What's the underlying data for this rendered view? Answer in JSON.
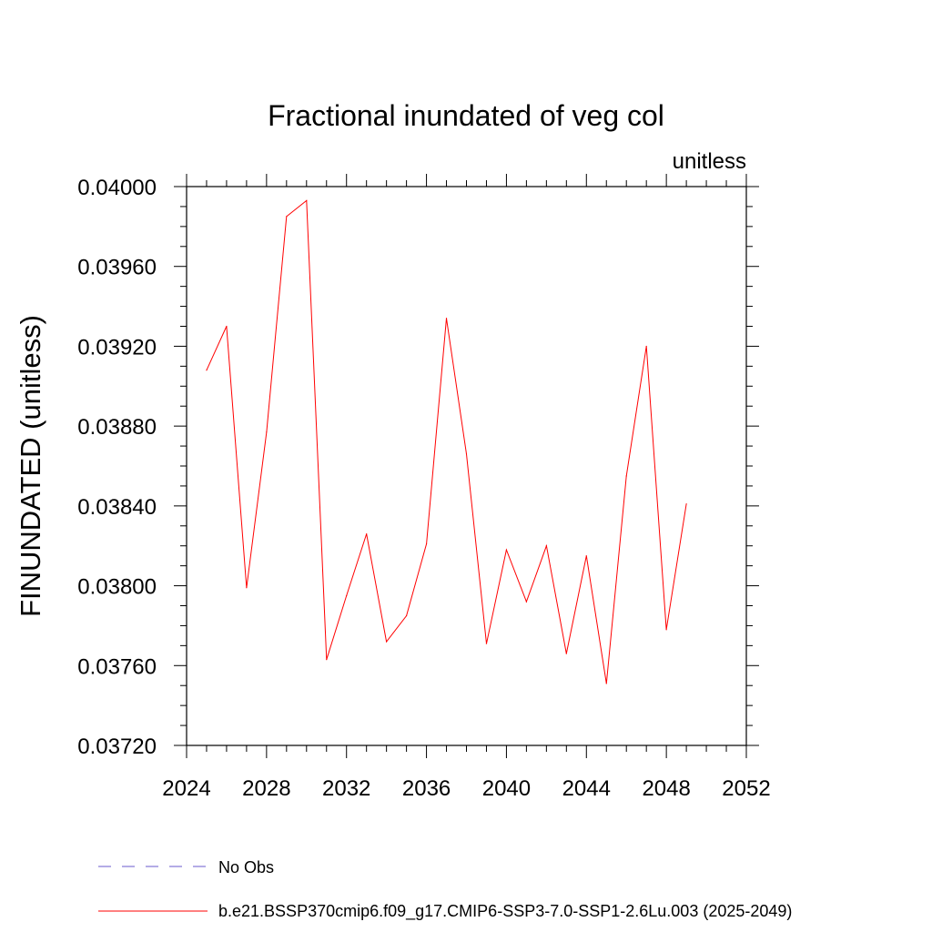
{
  "chart_data": {
    "type": "line",
    "title": "Fractional inundated of veg col",
    "units_label": "unitless",
    "xlabel": "",
    "ylabel": "FINUNDATED  (unitless)",
    "xlim": [
      2024,
      2052
    ],
    "ylim": [
      0.0372,
      0.04
    ],
    "x_ticks": [
      2024,
      2028,
      2032,
      2036,
      2040,
      2044,
      2048,
      2052
    ],
    "x_tick_labels": [
      "2024",
      "2028",
      "2032",
      "2036",
      "2040",
      "2044",
      "2048",
      "2052"
    ],
    "y_ticks": [
      0.0372,
      0.0376,
      0.038,
      0.0384,
      0.0388,
      0.0392,
      0.0396,
      0.04
    ],
    "y_tick_labels": [
      "0.03720",
      "0.03760",
      "0.03800",
      "0.03840",
      "0.03880",
      "0.03920",
      "0.03960",
      "0.04000"
    ],
    "grid": false,
    "legend_position": "bottom",
    "series": [
      {
        "name": "b.e21.BSSP370cmip6.f09_g17.CMIP6-SSP3-7.0-SSP1-2.6Lu.003 (2025-2049)",
        "color": "#ff0000",
        "style": "solid",
        "x": [
          2025,
          2026,
          2027,
          2028,
          2029,
          2030,
          2031,
          2032,
          2033,
          2034,
          2035,
          2036,
          2037,
          2038,
          2039,
          2040,
          2041,
          2042,
          2043,
          2044,
          2045,
          2046,
          2047,
          2048,
          2049
        ],
        "y": [
          0.03908,
          0.0393,
          0.03799,
          0.03877,
          0.03985,
          0.03993,
          0.03763,
          0.03795,
          0.03826,
          0.03772,
          0.03785,
          0.03821,
          0.03934,
          0.03866,
          0.03771,
          0.03818,
          0.03792,
          0.0382,
          0.03766,
          0.03815,
          0.03751,
          0.03855,
          0.0392,
          0.03778,
          0.03841
        ]
      }
    ],
    "legend": [
      {
        "label": "No Obs",
        "color": "#6a5acd",
        "style": "dashed"
      },
      {
        "label": "b.e21.BSSP370cmip6.f09_g17.CMIP6-SSP3-7.0-SSP1-2.6Lu.003 (2025-2049)",
        "color": "#ff0000",
        "style": "solid"
      }
    ]
  }
}
